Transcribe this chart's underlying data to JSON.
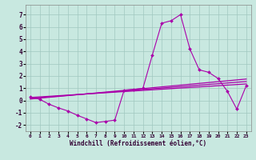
{
  "xlabel": "Windchill (Refroidissement éolien,°C)",
  "background_color": "#c8e8e0",
  "line_color": "#aa00aa",
  "xlim": [
    -0.5,
    23.5
  ],
  "ylim": [
    -2.5,
    7.8
  ],
  "yticks": [
    -2,
    -1,
    0,
    1,
    2,
    3,
    4,
    5,
    6,
    7
  ],
  "xticks": [
    0,
    1,
    2,
    3,
    4,
    5,
    6,
    7,
    8,
    9,
    10,
    11,
    12,
    13,
    14,
    15,
    16,
    17,
    18,
    19,
    20,
    21,
    22,
    23
  ],
  "series": [
    {
      "x": [
        0,
        1,
        2,
        3,
        4,
        5,
        6,
        7,
        8,
        9,
        10,
        11,
        12,
        13,
        14,
        15,
        16,
        17,
        18,
        19,
        20,
        21,
        22,
        23
      ],
      "y": [
        0.3,
        0.1,
        -0.3,
        -0.6,
        -0.85,
        -1.2,
        -1.5,
        -1.8,
        -1.7,
        -1.6,
        0.85,
        0.9,
        1.0,
        3.7,
        6.3,
        6.5,
        7.0,
        4.2,
        2.5,
        2.3,
        1.8,
        0.75,
        -0.7,
        1.2
      ],
      "marker": "D",
      "markersize": 2.0,
      "linewidth": 0.8
    },
    {
      "x": [
        0,
        23
      ],
      "y": [
        0.25,
        1.35
      ],
      "marker": null,
      "linewidth": 0.9
    },
    {
      "x": [
        0,
        23
      ],
      "y": [
        0.18,
        1.55
      ],
      "marker": null,
      "linewidth": 0.9
    },
    {
      "x": [
        0,
        23
      ],
      "y": [
        0.12,
        1.75
      ],
      "marker": null,
      "linewidth": 0.9
    }
  ]
}
